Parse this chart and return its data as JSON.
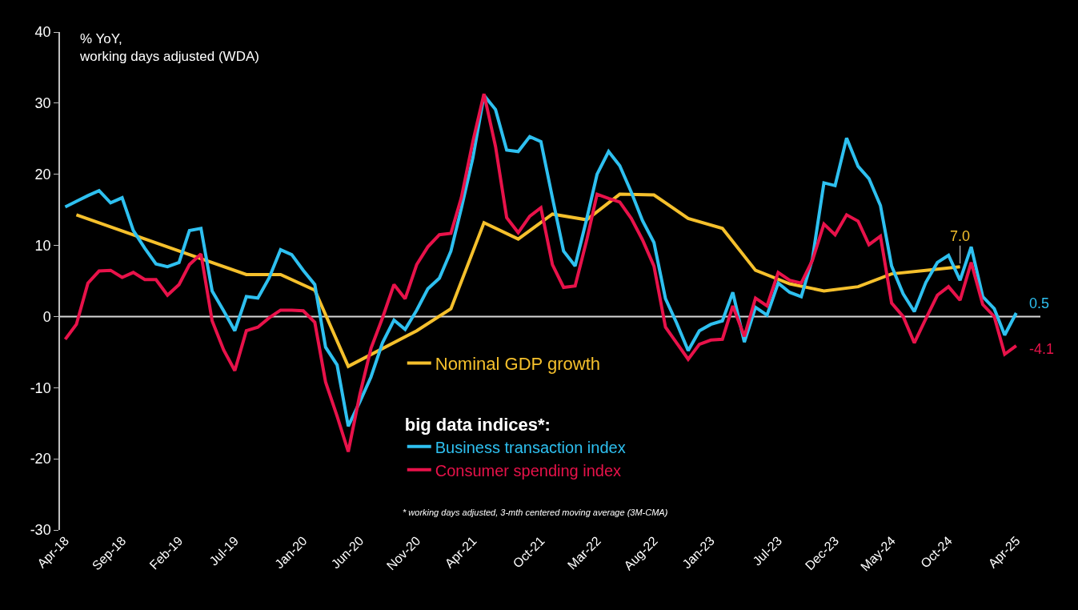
{
  "chart_data": {
    "type": "line",
    "ylabel": "% YoY,\nworking days adjusted (WDA)",
    "legend_title": "big data indices*:",
    "annotations": [
      "* working days adjusted, 3-mth centered moving average (3M-CMA)"
    ],
    "x": [
      "2018-04",
      "2018-05",
      "2018-06",
      "2018-07",
      "2018-08",
      "2018-09",
      "2018-10",
      "2018-11",
      "2018-12",
      "2019-01",
      "2019-02",
      "2019-03",
      "2019-04",
      "2019-05",
      "2019-06",
      "2019-07",
      "2019-08",
      "2019-09",
      "2019-10",
      "2019-11",
      "2019-12",
      "2020-01",
      "2020-02",
      "2020-03",
      "2020-04",
      "2020-05",
      "2020-06",
      "2020-07",
      "2020-08",
      "2020-09",
      "2020-10",
      "2020-11",
      "2020-12",
      "2021-01",
      "2021-02",
      "2021-03",
      "2021-04",
      "2021-05",
      "2021-06",
      "2021-07",
      "2021-08",
      "2021-09",
      "2021-10",
      "2021-11",
      "2021-12",
      "2022-01",
      "2022-02",
      "2022-03",
      "2022-04",
      "2022-05",
      "2022-06",
      "2022-07",
      "2022-08",
      "2022-09",
      "2022-10",
      "2022-11",
      "2022-12",
      "2023-01",
      "2023-02",
      "2023-03",
      "2023-04",
      "2023-05",
      "2023-06",
      "2023-07",
      "2023-08",
      "2023-09",
      "2023-10",
      "2023-11",
      "2023-12",
      "2024-01",
      "2024-02",
      "2024-03",
      "2024-04",
      "2024-05",
      "2024-06",
      "2024-07",
      "2024-08",
      "2024-09",
      "2024-10",
      "2024-11",
      "2024-12",
      "2025-01",
      "2025-02",
      "2025-03",
      "2025-04"
    ],
    "series": [
      {
        "name": "Nominal GDP growth",
        "color": "#f5c02c",
        "x": [
          "2018-05",
          "2019-08",
          "2019-11",
          "2020-02",
          "2020-05",
          "2020-11",
          "2021-02",
          "2021-05",
          "2021-08",
          "2021-11",
          "2022-02",
          "2022-05",
          "2022-08",
          "2022-11",
          "2023-02",
          "2023-05",
          "2023-08",
          "2023-11",
          "2024-02",
          "2024-05",
          "2024-08",
          "2024-11"
        ],
        "values": [
          14.3,
          5.9,
          5.9,
          3.7,
          -7.0,
          -2.0,
          1.1,
          13.2,
          10.9,
          14.4,
          13.6,
          17.2,
          17.1,
          13.8,
          12.4,
          6.5,
          4.6,
          3.6,
          4.2,
          6.0,
          6.5,
          7.0
        ],
        "value_labels": [
          null,
          null,
          null,
          null,
          null,
          null,
          null,
          null,
          null,
          null,
          null,
          null,
          null,
          null,
          null,
          null,
          null,
          null,
          null,
          null,
          null,
          "7.0"
        ]
      },
      {
        "name": "Business transaction index",
        "color": "#2ec0f0",
        "values": [
          15.4,
          16.2,
          17.0,
          17.7,
          16.0,
          16.7,
          12.1,
          9.6,
          7.4,
          7.0,
          7.6,
          12.1,
          12.4,
          3.6,
          0.8,
          -2.0,
          2.8,
          2.6,
          5.4,
          9.4,
          8.7,
          6.5,
          4.5,
          -4.3,
          -6.8,
          -15.4,
          -12,
          -8.5,
          -3.7,
          -0.5,
          -1.8,
          0.9,
          3.9,
          5.4,
          9.2,
          15.2,
          22.3,
          31.1,
          29.1,
          23.4,
          23.2,
          25.3,
          24.6,
          16.7,
          9.2,
          7.1,
          13.7,
          20.0,
          23.2,
          21.2,
          17.5,
          13.5,
          10.4,
          2.5,
          -0.9,
          -4.8,
          -2.0,
          -1.1,
          -0.6,
          3.4,
          -3.6,
          1.3,
          0.2,
          4.7,
          3.4,
          2.8,
          8.1,
          18.8,
          18.4,
          25.1,
          21.1,
          19.4,
          15.6,
          7.1,
          3.2,
          0.7,
          4.8,
          7.6,
          8.6,
          5.1,
          9.8,
          2.8,
          1.1,
          -2.6,
          0.5
        ],
        "value_labels": [
          null,
          null,
          null,
          null,
          null,
          null,
          null,
          null,
          null,
          null,
          null,
          null,
          null,
          null,
          null,
          null,
          null,
          null,
          null,
          null,
          null,
          null,
          null,
          null,
          null,
          null,
          null,
          null,
          null,
          null,
          null,
          null,
          null,
          null,
          null,
          null,
          null,
          null,
          null,
          null,
          null,
          null,
          null,
          null,
          null,
          null,
          null,
          null,
          null,
          null,
          null,
          null,
          null,
          null,
          null,
          null,
          null,
          null,
          null,
          null,
          null,
          null,
          null,
          null,
          null,
          null,
          null,
          null,
          null,
          null,
          null,
          null,
          null,
          null,
          null,
          null,
          null,
          null,
          null,
          null,
          null,
          null,
          null,
          null,
          "0.5"
        ]
      },
      {
        "name": "Consumer spending index",
        "color": "#e8124a",
        "values": [
          -3.2,
          -1.1,
          4.7,
          6.4,
          6.5,
          5.5,
          6.2,
          5.2,
          5.2,
          3.0,
          4.5,
          7.3,
          8.8,
          -0.6,
          -4.7,
          -7.6,
          -2.0,
          -1.5,
          -0.2,
          0.9,
          0.9,
          0.8,
          -0.8,
          -9.2,
          -14,
          -19.0,
          -11,
          -4.5,
          -0.2,
          4.5,
          2.5,
          7.3,
          9.8,
          11.5,
          11.7,
          16.7,
          24.6,
          31.3,
          23.9,
          13.9,
          11.8,
          14.1,
          15.3,
          7.3,
          4.1,
          4.3,
          10.7,
          17.2,
          16.6,
          16.1,
          13.8,
          10.8,
          7.1,
          -1.5,
          -3.7,
          -6.0,
          -3.9,
          -3.3,
          -3.2,
          1.5,
          -2.8,
          2.6,
          1.5,
          6.2,
          5.1,
          4.7,
          7.9,
          13.0,
          11.5,
          14.3,
          13.4,
          10.1,
          11.3,
          1.9,
          0.0,
          -3.7,
          -0.3,
          3.0,
          4.2,
          2.3,
          7.6,
          1.7,
          0.0,
          -5.3,
          -4.1
        ],
        "value_labels": [
          null,
          null,
          null,
          null,
          null,
          null,
          null,
          null,
          null,
          null,
          null,
          null,
          null,
          null,
          null,
          null,
          null,
          null,
          null,
          null,
          null,
          null,
          null,
          null,
          null,
          null,
          null,
          null,
          null,
          null,
          null,
          null,
          null,
          null,
          null,
          null,
          null,
          null,
          null,
          null,
          null,
          null,
          null,
          null,
          null,
          null,
          null,
          null,
          null,
          null,
          null,
          null,
          null,
          null,
          null,
          null,
          null,
          null,
          null,
          null,
          null,
          null,
          null,
          null,
          null,
          null,
          null,
          null,
          null,
          null,
          null,
          null,
          null,
          null,
          null,
          null,
          null,
          null,
          null,
          null,
          null,
          null,
          null,
          null,
          "-4.1"
        ]
      }
    ],
    "xlim": [
      "2018-03-18",
      "2025-06-05"
    ],
    "xticks": [
      {
        "value": "2018-04",
        "label": "Apr-18"
      },
      {
        "value": "2018-09",
        "label": "Sep-18"
      },
      {
        "value": "2019-02",
        "label": "Feb-19"
      },
      {
        "value": "2019-07",
        "label": "Jul-19"
      },
      {
        "value": "2020-01",
        "label": "Jan-20"
      },
      {
        "value": "2020-06",
        "label": "Jun-20"
      },
      {
        "value": "2020-11",
        "label": "Nov-20"
      },
      {
        "value": "2021-04",
        "label": "Apr-21"
      },
      {
        "value": "2021-10",
        "label": "Oct-21"
      },
      {
        "value": "2022-03",
        "label": "Mar-22"
      },
      {
        "value": "2022-08",
        "label": "Aug-22"
      },
      {
        "value": "2023-01",
        "label": "Jan-23"
      },
      {
        "value": "2023-07",
        "label": "Jul-23"
      },
      {
        "value": "2023-12",
        "label": "Dec-23"
      },
      {
        "value": "2024-05",
        "label": "May-24"
      },
      {
        "value": "2024-10",
        "label": "Oct-24"
      },
      {
        "value": "2025-04",
        "label": "Apr-25"
      }
    ],
    "ylim": [
      -30,
      40
    ],
    "yticks": [
      -30,
      -20,
      -10,
      0,
      10,
      20,
      30,
      40
    ],
    "ref_lines": [
      {
        "axis": "y",
        "value": 0,
        "color": "#d9d9d9"
      }
    ],
    "legend": "bottom",
    "line_style": "solid",
    "marker": "none"
  }
}
